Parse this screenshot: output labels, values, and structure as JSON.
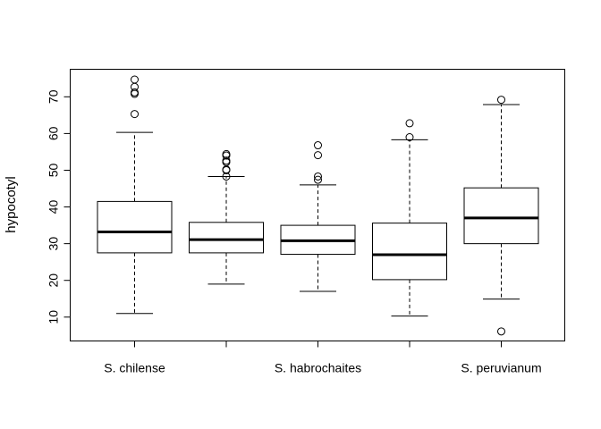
{
  "chart_data": {
    "type": "boxplot",
    "title": "",
    "xlabel": "",
    "ylabel": "hypocotyl",
    "ylim": [
      3.5,
      77.5
    ],
    "yticks": [
      10,
      20,
      30,
      40,
      50,
      60,
      70
    ],
    "grid": false,
    "categories": [
      "S. chilense",
      "",
      "S. habrochaites",
      "",
      "S. peruvianum"
    ],
    "boxes": [
      {
        "whisker_low": 11.0,
        "q1": 27.5,
        "median": 33.2,
        "q3": 41.5,
        "whisker_high": 60.3,
        "outliers": [
          65.3,
          70.8,
          71.2,
          72.7,
          74.7
        ]
      },
      {
        "whisker_low": 19.0,
        "q1": 27.5,
        "median": 31.1,
        "q3": 35.8,
        "whisker_high": 48.3,
        "outliers": [
          48.3,
          50.0,
          50.2,
          52.2,
          52.6,
          54.0,
          54.4
        ]
      },
      {
        "whisker_low": 17.0,
        "q1": 27.1,
        "median": 30.8,
        "q3": 35.0,
        "whisker_high": 46.0,
        "outliers": [
          47.4,
          48.3,
          54.1,
          56.8
        ]
      },
      {
        "whisker_low": 10.3,
        "q1": 20.2,
        "median": 27.0,
        "q3": 35.6,
        "whisker_high": 58.3,
        "outliers": [
          59.0,
          62.8
        ]
      },
      {
        "whisker_low": 14.9,
        "q1": 30.0,
        "median": 37.0,
        "q3": 45.2,
        "whisker_high": 67.9,
        "outliers": [
          6.1,
          69.2
        ]
      }
    ]
  }
}
